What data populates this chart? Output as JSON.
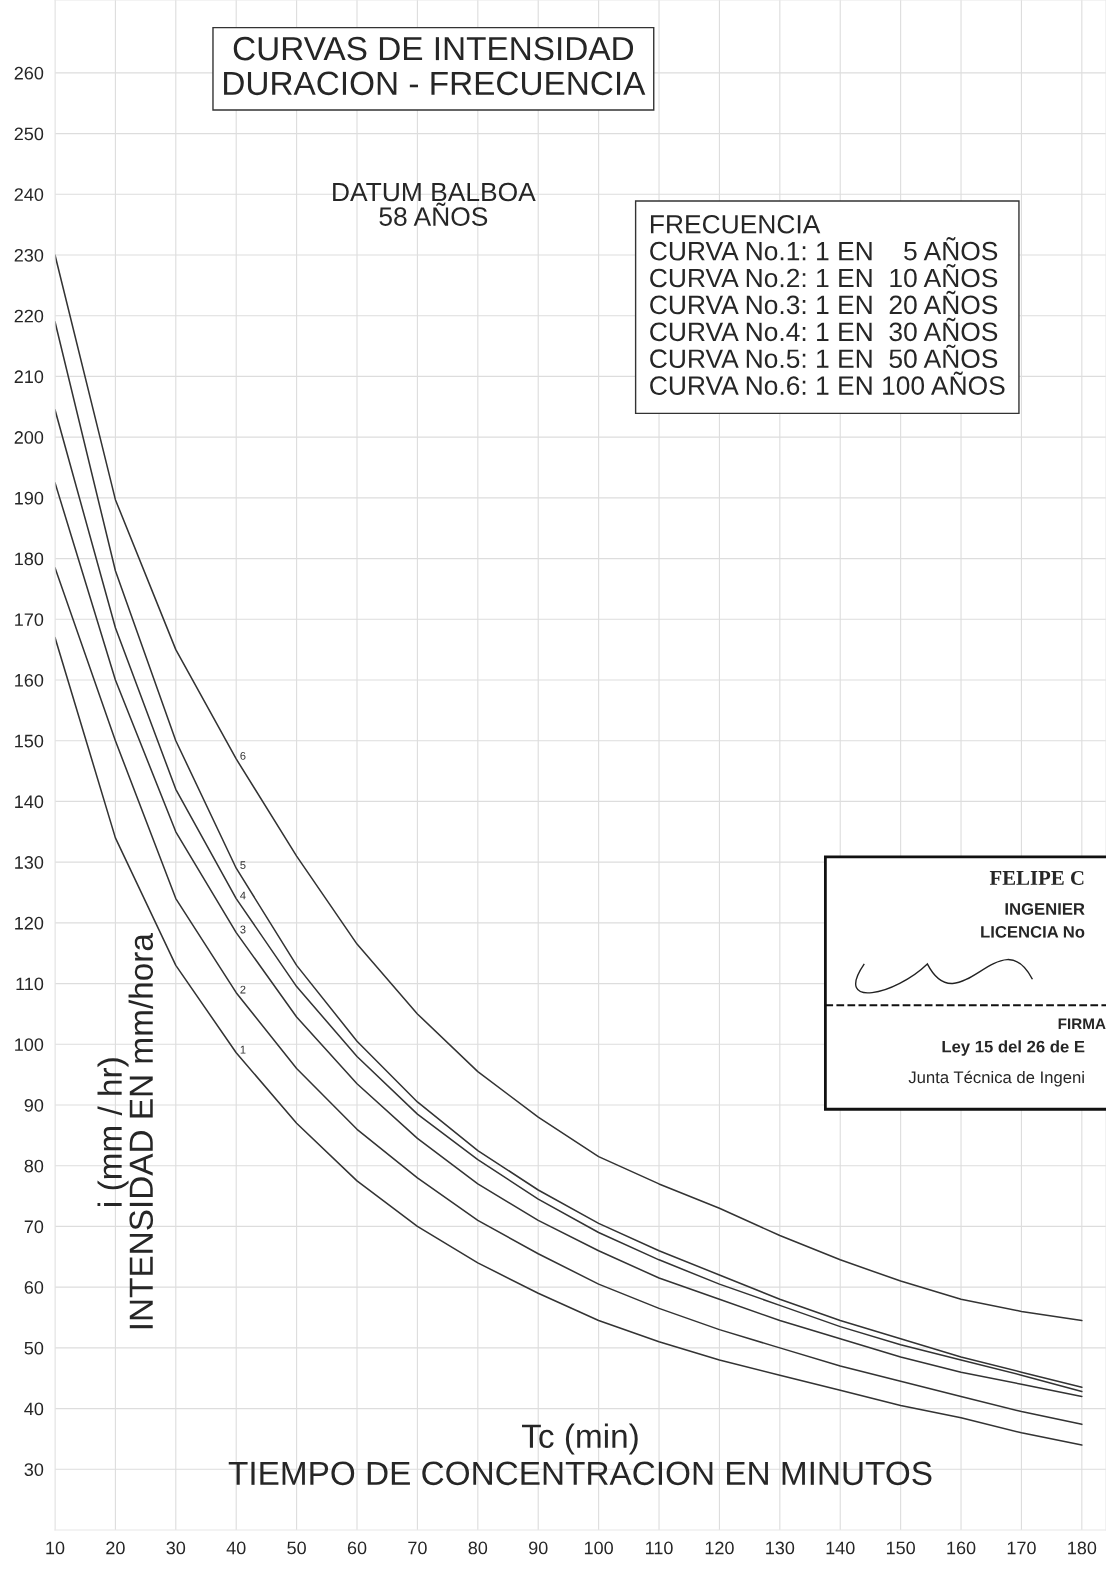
{
  "chart_data": {
    "type": "line",
    "title": "CURVAS DE INTENSIDAD\nDURACION - FRECUENCIA",
    "subtitle": "DATUM BALBOA\n58 AÑOS",
    "xlabel": "Tc (min)\nTIEMPO DE CONCENTRACION EN MINUTOS",
    "ylabel": "i (mm / hr)\nINTENSIDAD EN mm/hora",
    "x": [
      10,
      20,
      30,
      40,
      50,
      60,
      70,
      80,
      90,
      100,
      110,
      120,
      130,
      140,
      150,
      160,
      170,
      180
    ],
    "series": [
      {
        "name": "1",
        "color": "#333333",
        "values": [
          167,
          134,
          113,
          98.6,
          87,
          77.5,
          70,
          64,
          59,
          54.5,
          51,
          48,
          45.5,
          43,
          40.5,
          38.5,
          36,
          34
        ]
      },
      {
        "name": "2",
        "color": "#333333",
        "values": [
          178.5,
          150,
          124,
          108.5,
          96,
          86,
          78,
          71,
          65.5,
          60.5,
          56.5,
          53,
          50,
          47,
          44.5,
          42,
          39.5,
          37.4
        ]
      },
      {
        "name": "3",
        "color": "#333333",
        "values": [
          192.5,
          160,
          135,
          118.4,
          104.5,
          93.5,
          84.5,
          77,
          71,
          66,
          61.5,
          58,
          54.5,
          51.5,
          48.5,
          46,
          44,
          42
        ]
      },
      {
        "name": "4",
        "color": "#333333",
        "values": [
          204.5,
          168.6,
          142,
          124,
          109.5,
          98,
          88.5,
          81,
          74.5,
          69,
          64.5,
          60.5,
          57,
          53.5,
          50.5,
          48,
          45.5,
          42.8
        ]
      },
      {
        "name": "5",
        "color": "#333333",
        "values": [
          219,
          178,
          150,
          129,
          113,
          100.5,
          90.5,
          82.5,
          76,
          70.5,
          66,
          62,
          58,
          54.5,
          51.5,
          48.5,
          46,
          43.5
        ]
      },
      {
        "name": "6",
        "color": "#333333",
        "values": [
          230,
          189.7,
          165,
          147,
          131,
          116.5,
          105,
          95.5,
          88,
          81.5,
          77,
          73,
          68.5,
          64.5,
          61,
          58,
          56,
          54.5
        ]
      }
    ],
    "xlim": [
      10,
      184
    ],
    "ylim": [
      20,
      272
    ],
    "xticks": [
      10,
      20,
      30,
      40,
      50,
      60,
      70,
      80,
      90,
      100,
      110,
      120,
      130,
      140,
      150,
      160,
      170,
      180
    ],
    "yticks": [
      30,
      40,
      50,
      60,
      70,
      80,
      90,
      100,
      110,
      120,
      130,
      140,
      150,
      160,
      170,
      180,
      190,
      200,
      210,
      220,
      230,
      240,
      250,
      260
    ],
    "grid": true,
    "marker": "none",
    "line_style": "solid",
    "annotations": [
      "FRECUENCIA\nCURVA No.1: 1 EN    5 AÑOS\nCURVA No.2: 1 EN  10 AÑOS\nCURVA No.3: 1 EN  20 AÑOS\nCURVA No.4: 1 EN  30 AÑOS\nCURVA No.5: 1 EN  50 AÑOS\nCURVA No.6: 1 EN 100 AÑOS",
      "FELIPE C",
      "INGENIER",
      "LICENCIA No",
      "FIRMA",
      "Ley 15 del 26 de E",
      "Junta Técnica de Ingeni"
    ]
  }
}
